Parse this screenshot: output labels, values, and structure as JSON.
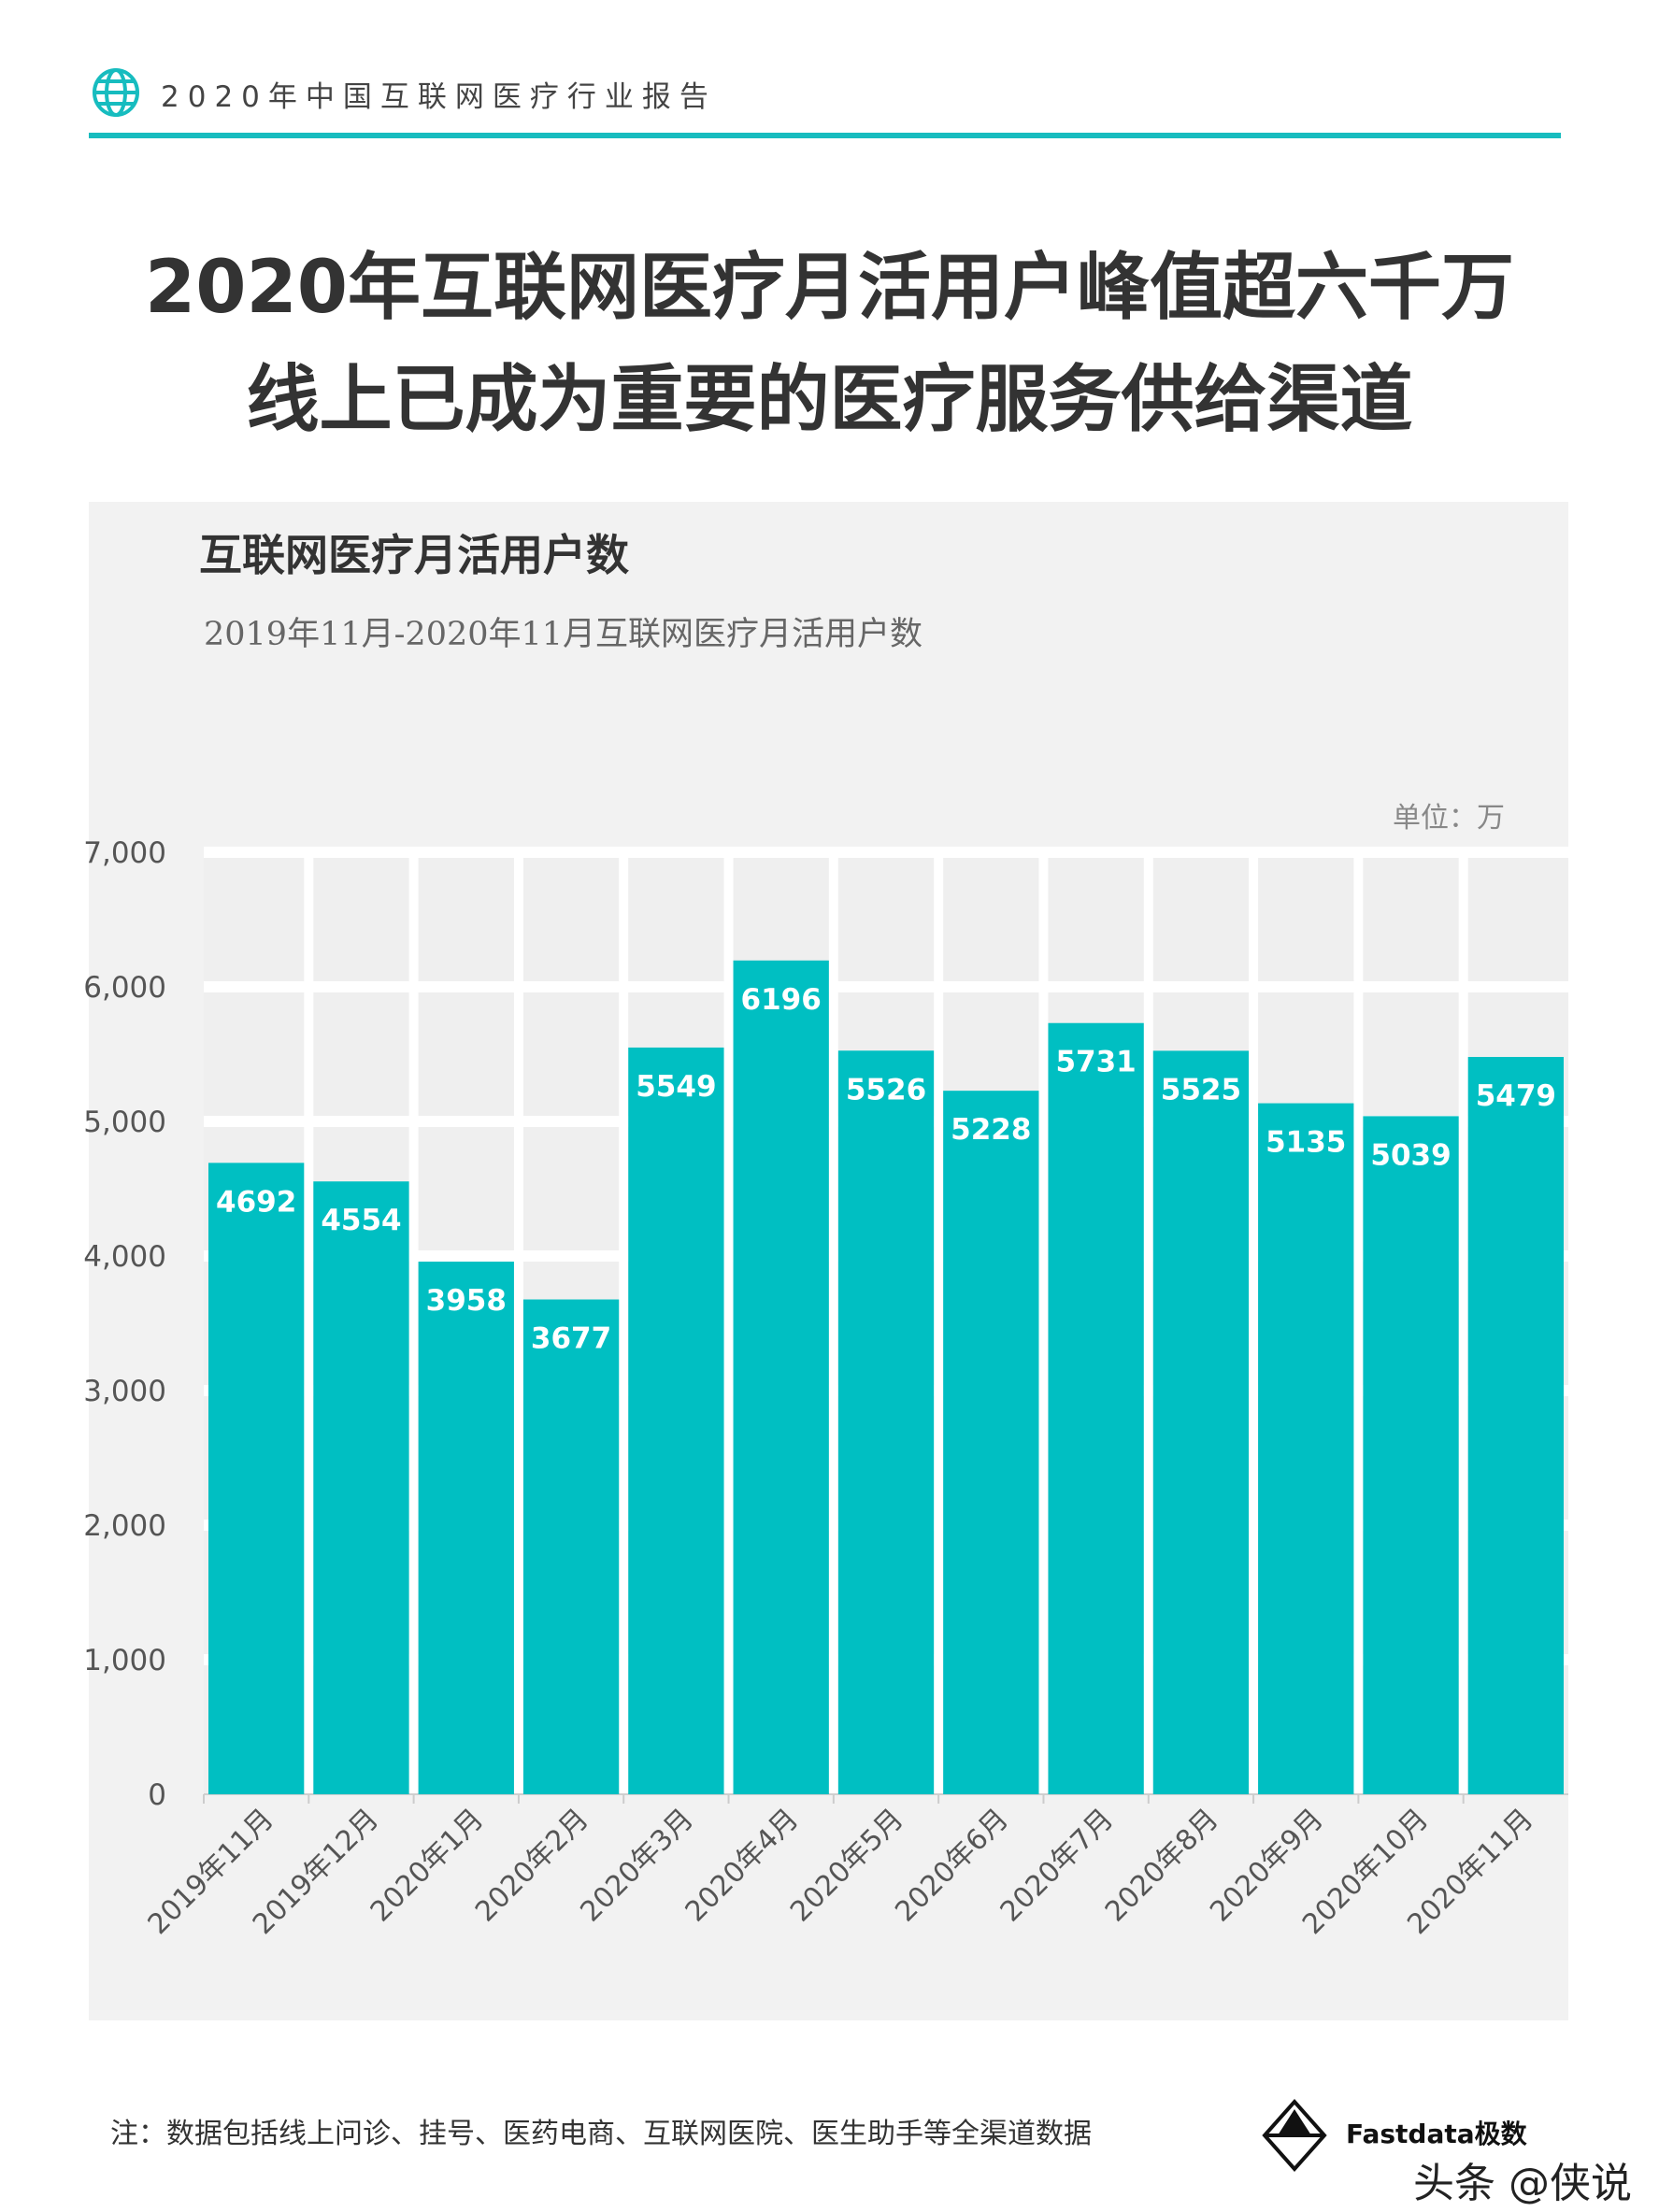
{
  "header": {
    "report_title": "2020年中国互联网医疗行业报告",
    "icon": "globe-icon",
    "accent": "#17bcbf"
  },
  "headline": {
    "line1": "2020年互联网医疗月活用户峰值超六千万",
    "line2": "线上已成为重要的医疗服务供给渠道"
  },
  "chart_data": {
    "type": "bar",
    "title": "互联网医疗月活用户数",
    "subtitle": "2019年11月-2020年11月互联网医疗月活用户数",
    "unit": "单位：万",
    "categories": [
      "2019年11月",
      "2019年12月",
      "2020年1月",
      "2020年2月",
      "2020年3月",
      "2020年4月",
      "2020年5月",
      "2020年6月",
      "2020年7月",
      "2020年8月",
      "2020年9月",
      "2020年10月",
      "2020年11月"
    ],
    "values": [
      4692,
      4554,
      3958,
      3677,
      5549,
      6196,
      5526,
      5228,
      5731,
      5525,
      5135,
      5039,
      5479
    ],
    "ylim": [
      0,
      7000
    ],
    "yticks": [
      "0",
      "1,000",
      "2,000",
      "3,000",
      "4,000",
      "5,000",
      "6,000",
      "7,000"
    ],
    "grid": true,
    "bar_color": "#00bfc2",
    "data_labels": true
  },
  "footer": {
    "note": "注：数据包括线上问诊、挂号、医药电商、互联网医院、医生助手等全渠道数据",
    "logo_text": "Fastdata极数",
    "watermark": "头条 @侠说"
  }
}
